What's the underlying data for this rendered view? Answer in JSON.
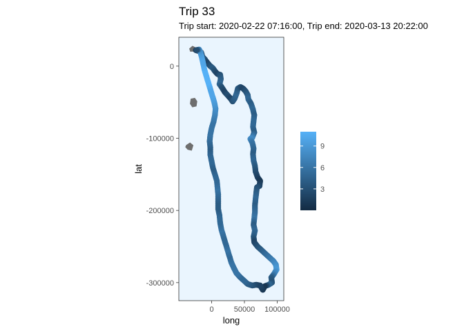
{
  "chart_data": {
    "type": "scatter",
    "title": "Trip 33",
    "subtitle": "Trip start: 2020-02-22 07:16:00, Trip end: 2020-03-13 20:22:00",
    "xlabel": "long",
    "ylabel": "lat",
    "xlim": [
      -50000,
      110000
    ],
    "ylim": [
      -325000,
      40000
    ],
    "x_ticks": [
      {
        "value": 0,
        "label": "0"
      },
      {
        "value": 50000,
        "label": "50000"
      },
      {
        "value": 100000,
        "label": "100000"
      }
    ],
    "y_ticks": [
      {
        "value": 0,
        "label": "0"
      },
      {
        "value": -100000,
        "label": "-100000"
      },
      {
        "value": -200000,
        "label": "-200000"
      },
      {
        "value": -300000,
        "label": "-300000"
      }
    ],
    "panel_background": "#eaf5fe",
    "grid": false,
    "legend": {
      "position": "right",
      "type": "colorbar",
      "low_color": "#132b43",
      "high_color": "#56b1f7",
      "range": [
        0,
        11
      ],
      "ticks": [
        {
          "value": 3,
          "label": "3"
        },
        {
          "value": 6,
          "label": "6"
        },
        {
          "value": 9,
          "label": "9"
        }
      ]
    },
    "land": {
      "color": "#6e6e6e",
      "islands": [
        [
          [
            -33000,
            24000
          ],
          [
            -29000,
            27000
          ],
          [
            -25000,
            25000
          ],
          [
            -27000,
            21000
          ],
          [
            -32000,
            21000
          ]
        ],
        [
          [
            -31000,
            -46000
          ],
          [
            -26000,
            -45000
          ],
          [
            -23000,
            -49000
          ],
          [
            -24000,
            -55000
          ],
          [
            -29000,
            -56000
          ],
          [
            -32000,
            -52000
          ]
        ],
        [
          [
            -38000,
            -110000
          ],
          [
            -33000,
            -107000
          ],
          [
            -29000,
            -110000
          ],
          [
            -31000,
            -116000
          ],
          [
            -36000,
            -115000
          ],
          [
            -39000,
            -112000
          ]
        ]
      ]
    },
    "track": [
      [
        -24000,
        22000,
        1
      ],
      [
        -20000,
        21000,
        2
      ],
      [
        -16000,
        19000,
        3
      ],
      [
        -14000,
        13000,
        2
      ],
      [
        -10000,
        9000,
        3
      ],
      [
        -6000,
        4000,
        2
      ],
      [
        -2000,
        0,
        3
      ],
      [
        2000,
        -3000,
        4
      ],
      [
        5000,
        -7000,
        3
      ],
      [
        9000,
        -11000,
        2
      ],
      [
        13000,
        -12000,
        3
      ],
      [
        14000,
        -18000,
        4
      ],
      [
        12000,
        -25000,
        5
      ],
      [
        16000,
        -30000,
        3
      ],
      [
        20000,
        -36000,
        2
      ],
      [
        25000,
        -41000,
        3
      ],
      [
        29000,
        -45000,
        2
      ],
      [
        32000,
        -49000,
        3
      ],
      [
        35000,
        -45000,
        4
      ],
      [
        38000,
        -38000,
        5
      ],
      [
        40000,
        -31000,
        4
      ],
      [
        44000,
        -29000,
        3
      ],
      [
        48000,
        -31000,
        2
      ],
      [
        52000,
        -35000,
        3
      ],
      [
        55000,
        -40000,
        4
      ],
      [
        56000,
        -46000,
        5
      ],
      [
        60000,
        -52000,
        4
      ],
      [
        63000,
        -60000,
        5
      ],
      [
        65000,
        -68000,
        4
      ],
      [
        64000,
        -76000,
        5
      ],
      [
        63000,
        -84000,
        5
      ],
      [
        65000,
        -92000,
        4
      ],
      [
        62000,
        -99000,
        7
      ],
      [
        59000,
        -101000,
        8
      ],
      [
        62000,
        -106000,
        6
      ],
      [
        64000,
        -114000,
        5
      ],
      [
        63000,
        -122000,
        4
      ],
      [
        64000,
        -131000,
        5
      ],
      [
        66000,
        -138000,
        4
      ],
      [
        67000,
        -146000,
        3
      ],
      [
        70000,
        -154000,
        2
      ],
      [
        74000,
        -159000,
        1
      ],
      [
        73000,
        -166000,
        2
      ],
      [
        69000,
        -168000,
        3
      ],
      [
        68000,
        -176000,
        4
      ],
      [
        67000,
        -184000,
        5
      ],
      [
        66000,
        -193000,
        4
      ],
      [
        66000,
        -202000,
        5
      ],
      [
        65000,
        -211000,
        6
      ],
      [
        64000,
        -220000,
        4
      ],
      [
        66000,
        -228000,
        5
      ],
      [
        64000,
        -236000,
        4
      ],
      [
        65000,
        -244000,
        2
      ],
      [
        70000,
        -250000,
        3
      ],
      [
        76000,
        -255000,
        4
      ],
      [
        82000,
        -260000,
        5
      ],
      [
        88000,
        -265000,
        6
      ],
      [
        94000,
        -270000,
        7
      ],
      [
        98000,
        -275000,
        8
      ],
      [
        99000,
        -282000,
        9
      ],
      [
        95000,
        -288000,
        7
      ],
      [
        91000,
        -293000,
        4
      ],
      [
        92000,
        -300000,
        3
      ],
      [
        87000,
        -303000,
        5
      ],
      [
        81000,
        -305000,
        1
      ],
      [
        78000,
        -310000,
        1
      ],
      [
        74000,
        -304000,
        2
      ],
      [
        68000,
        -303000,
        2
      ],
      [
        62000,
        -304000,
        3
      ],
      [
        55000,
        -302000,
        4
      ],
      [
        49000,
        -297000,
        5
      ],
      [
        43000,
        -292000,
        5
      ],
      [
        38000,
        -287000,
        6
      ],
      [
        34000,
        -280000,
        6
      ],
      [
        30000,
        -272000,
        6
      ],
      [
        27000,
        -263000,
        5
      ],
      [
        24000,
        -254000,
        6
      ],
      [
        21000,
        -245000,
        5
      ],
      [
        18000,
        -236000,
        5
      ],
      [
        15000,
        -227000,
        6
      ],
      [
        13000,
        -217000,
        5
      ],
      [
        12000,
        -207000,
        5
      ],
      [
        10000,
        -198000,
        4
      ],
      [
        10000,
        -188000,
        4
      ],
      [
        10000,
        -178000,
        5
      ],
      [
        9000,
        -169000,
        6
      ],
      [
        8000,
        -159000,
        5
      ],
      [
        5000,
        -150000,
        5
      ],
      [
        2000,
        -141000,
        4
      ],
      [
        0,
        -132000,
        5
      ],
      [
        -2000,
        -123000,
        5
      ],
      [
        -2000,
        -113000,
        4
      ],
      [
        -3000,
        -104000,
        5
      ],
      [
        -2000,
        -95000,
        6
      ],
      [
        0,
        -86000,
        6
      ],
      [
        3000,
        -77000,
        6
      ],
      [
        5000,
        -68000,
        7
      ],
      [
        6000,
        -59000,
        8
      ],
      [
        4000,
        -50000,
        9
      ],
      [
        1000,
        -41000,
        10
      ],
      [
        -2000,
        -32000,
        10
      ],
      [
        -5000,
        -23000,
        11
      ],
      [
        -8000,
        -14000,
        11
      ],
      [
        -11000,
        -5000,
        11
      ],
      [
        -13000,
        4000,
        10
      ],
      [
        -15000,
        12000,
        10
      ],
      [
        -17000,
        19000,
        9
      ],
      [
        -19000,
        23000,
        8
      ]
    ]
  }
}
